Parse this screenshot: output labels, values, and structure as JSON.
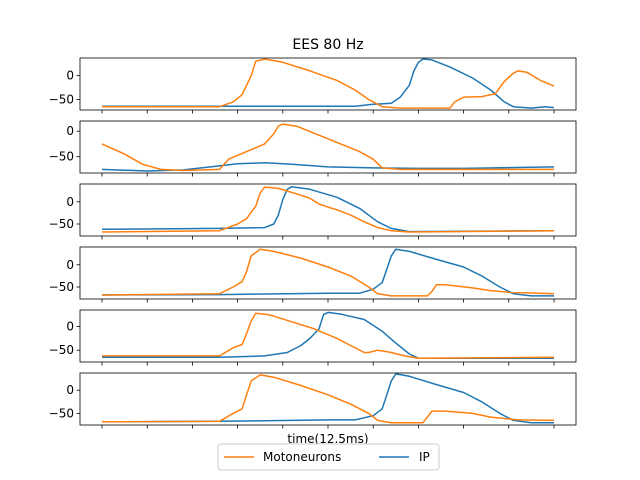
{
  "chart_data": {
    "type": "line",
    "title": "EES 80 Hz",
    "xlabel": "time(12.5ms)",
    "ylabel": "",
    "legend": {
      "placement": "bottom-center",
      "entries": [
        "Motoneurons",
        "IP"
      ]
    },
    "colors": {
      "Motoneurons": "#ff7f0e",
      "IP": "#1f77b4"
    },
    "x_range": [
      0,
      100
    ],
    "yticks": [
      0,
      -50
    ],
    "subplots": [
      {
        "ylim": [
          -72,
          37
        ],
        "series": [
          {
            "name": "Motoneurons",
            "points": [
              [
                0,
                -65
              ],
              [
                26,
                -65
              ],
              [
                29,
                -55
              ],
              [
                31,
                -40
              ],
              [
                33,
                0
              ],
              [
                34,
                30
              ],
              [
                36,
                35
              ],
              [
                40,
                28
              ],
              [
                46,
                10
              ],
              [
                52,
                -10
              ],
              [
                56,
                -30
              ],
              [
                59,
                -50
              ],
              [
                62,
                -65
              ],
              [
                66,
                -68
              ],
              [
                74,
                -68
              ],
              [
                77,
                -68
              ],
              [
                78,
                -55
              ],
              [
                80,
                -45
              ],
              [
                84,
                -44
              ],
              [
                87,
                -38
              ],
              [
                89,
                -12
              ],
              [
                91,
                5
              ],
              [
                92,
                10
              ],
              [
                94,
                7
              ],
              [
                97,
                -10
              ],
              [
                100,
                -22
              ]
            ]
          },
          {
            "name": "IP",
            "points": [
              [
                0,
                -64
              ],
              [
                26,
                -64
              ],
              [
                50,
                -64
              ],
              [
                56,
                -64
              ],
              [
                60,
                -60
              ],
              [
                64,
                -58
              ],
              [
                66,
                -45
              ],
              [
                68,
                -20
              ],
              [
                69,
                10
              ],
              [
                70,
                28
              ],
              [
                71,
                35
              ],
              [
                73,
                33
              ],
              [
                77,
                18
              ],
              [
                82,
                -5
              ],
              [
                86,
                -30
              ],
              [
                89,
                -55
              ],
              [
                91,
                -65
              ],
              [
                95,
                -68
              ],
              [
                98,
                -65
              ],
              [
                100,
                -67
              ]
            ]
          }
        ]
      },
      {
        "ylim": [
          -82,
          20
        ],
        "series": [
          {
            "name": "Motoneurons",
            "points": [
              [
                0,
                -25
              ],
              [
                5,
                -45
              ],
              [
                9,
                -65
              ],
              [
                13,
                -75
              ],
              [
                18,
                -77
              ],
              [
                26,
                -75
              ],
              [
                28,
                -55
              ],
              [
                32,
                -40
              ],
              [
                36,
                -25
              ],
              [
                38,
                -5
              ],
              [
                39,
                10
              ],
              [
                40,
                14
              ],
              [
                43,
                10
              ],
              [
                50,
                -15
              ],
              [
                57,
                -40
              ],
              [
                60,
                -55
              ],
              [
                62,
                -72
              ],
              [
                66,
                -75
              ],
              [
                100,
                -75
              ]
            ]
          },
          {
            "name": "IP",
            "points": [
              [
                0,
                -75
              ],
              [
                10,
                -78
              ],
              [
                18,
                -76
              ],
              [
                24,
                -70
              ],
              [
                30,
                -64
              ],
              [
                36,
                -62
              ],
              [
                42,
                -65
              ],
              [
                50,
                -70
              ],
              [
                60,
                -72
              ],
              [
                70,
                -73
              ],
              [
                80,
                -73
              ],
              [
                100,
                -70
              ]
            ]
          }
        ]
      },
      {
        "ylim": [
          -77,
          40
        ],
        "series": [
          {
            "name": "Motoneurons",
            "points": [
              [
                0,
                -68
              ],
              [
                26,
                -65
              ],
              [
                30,
                -50
              ],
              [
                32,
                -38
              ],
              [
                34,
                -10
              ],
              [
                35,
                20
              ],
              [
                36,
                33
              ],
              [
                39,
                30
              ],
              [
                43,
                18
              ],
              [
                46,
                8
              ],
              [
                48,
                -5
              ],
              [
                50,
                -12
              ],
              [
                52,
                -18
              ],
              [
                55,
                -30
              ],
              [
                58,
                -45
              ],
              [
                61,
                -58
              ],
              [
                64,
                -65
              ],
              [
                68,
                -68
              ],
              [
                100,
                -65
              ]
            ]
          },
          {
            "name": "IP",
            "points": [
              [
                0,
                -62
              ],
              [
                26,
                -60
              ],
              [
                36,
                -58
              ],
              [
                38,
                -50
              ],
              [
                39,
                -30
              ],
              [
                40,
                5
              ],
              [
                41,
                28
              ],
              [
                42,
                34
              ],
              [
                46,
                28
              ],
              [
                52,
                10
              ],
              [
                57,
                -15
              ],
              [
                61,
                -45
              ],
              [
                64,
                -60
              ],
              [
                68,
                -67
              ],
              [
                100,
                -65
              ]
            ]
          }
        ]
      },
      {
        "ylim": [
          -77,
          40
        ],
        "series": [
          {
            "name": "Motoneurons",
            "points": [
              [
                0,
                -68
              ],
              [
                26,
                -65
              ],
              [
                29,
                -50
              ],
              [
                31,
                -38
              ],
              [
                32,
                -15
              ],
              [
                33,
                20
              ],
              [
                35,
                35
              ],
              [
                38,
                30
              ],
              [
                44,
                15
              ],
              [
                50,
                -5
              ],
              [
                55,
                -25
              ],
              [
                59,
                -50
              ],
              [
                61,
                -65
              ],
              [
                64,
                -70
              ],
              [
                72,
                -70
              ],
              [
                73,
                -60
              ],
              [
                74,
                -45
              ],
              [
                76,
                -45
              ],
              [
                82,
                -52
              ],
              [
                86,
                -58
              ],
              [
                90,
                -62
              ],
              [
                100,
                -65
              ]
            ]
          },
          {
            "name": "IP",
            "points": [
              [
                0,
                -68
              ],
              [
                26,
                -67
              ],
              [
                50,
                -64
              ],
              [
                57,
                -64
              ],
              [
                60,
                -55
              ],
              [
                62,
                -40
              ],
              [
                63,
                -10
              ],
              [
                64,
                20
              ],
              [
                65,
                35
              ],
              [
                68,
                30
              ],
              [
                74,
                12
              ],
              [
                80,
                -5
              ],
              [
                84,
                -25
              ],
              [
                88,
                -50
              ],
              [
                91,
                -65
              ],
              [
                95,
                -70
              ],
              [
                100,
                -70
              ]
            ]
          }
        ]
      },
      {
        "ylim": [
          -75,
          35
        ],
        "series": [
          {
            "name": "Motoneurons",
            "points": [
              [
                0,
                -62
              ],
              [
                26,
                -62
              ],
              [
                29,
                -45
              ],
              [
                31,
                -38
              ],
              [
                32,
                -15
              ],
              [
                33,
                12
              ],
              [
                34,
                28
              ],
              [
                37,
                25
              ],
              [
                42,
                10
              ],
              [
                47,
                -5
              ],
              [
                52,
                -25
              ],
              [
                55,
                -40
              ],
              [
                58,
                -55
              ],
              [
                59,
                -55
              ],
              [
                61,
                -50
              ],
              [
                64,
                -55
              ],
              [
                67,
                -62
              ],
              [
                70,
                -67
              ],
              [
                100,
                -65
              ]
            ]
          },
          {
            "name": "IP",
            "points": [
              [
                0,
                -65
              ],
              [
                26,
                -65
              ],
              [
                36,
                -62
              ],
              [
                41,
                -55
              ],
              [
                44,
                -40
              ],
              [
                46,
                -25
              ],
              [
                48,
                -5
              ],
              [
                49,
                25
              ],
              [
                50,
                30
              ],
              [
                53,
                26
              ],
              [
                58,
                15
              ],
              [
                62,
                -10
              ],
              [
                65,
                -35
              ],
              [
                68,
                -58
              ],
              [
                70,
                -67
              ],
              [
                100,
                -67
              ]
            ]
          }
        ]
      },
      {
        "ylim": [
          -75,
          37
        ],
        "series": [
          {
            "name": "Motoneurons",
            "points": [
              [
                0,
                -68
              ],
              [
                26,
                -67
              ],
              [
                29,
                -50
              ],
              [
                31,
                -40
              ],
              [
                32,
                -10
              ],
              [
                33,
                20
              ],
              [
                35,
                33
              ],
              [
                38,
                28
              ],
              [
                44,
                10
              ],
              [
                50,
                -10
              ],
              [
                55,
                -30
              ],
              [
                59,
                -50
              ],
              [
                61,
                -65
              ],
              [
                64,
                -70
              ],
              [
                71,
                -70
              ],
              [
                72,
                -58
              ],
              [
                73,
                -45
              ],
              [
                76,
                -45
              ],
              [
                82,
                -50
              ],
              [
                86,
                -58
              ],
              [
                92,
                -64
              ],
              [
                100,
                -65
              ]
            ]
          },
          {
            "name": "IP",
            "points": [
              [
                0,
                -68
              ],
              [
                26,
                -67
              ],
              [
                50,
                -64
              ],
              [
                56,
                -64
              ],
              [
                60,
                -55
              ],
              [
                62,
                -40
              ],
              [
                63,
                -10
              ],
              [
                64,
                20
              ],
              [
                65,
                35
              ],
              [
                68,
                30
              ],
              [
                74,
                12
              ],
              [
                80,
                -5
              ],
              [
                84,
                -25
              ],
              [
                88,
                -50
              ],
              [
                91,
                -65
              ],
              [
                95,
                -70
              ],
              [
                100,
                -70
              ]
            ]
          }
        ]
      }
    ]
  }
}
